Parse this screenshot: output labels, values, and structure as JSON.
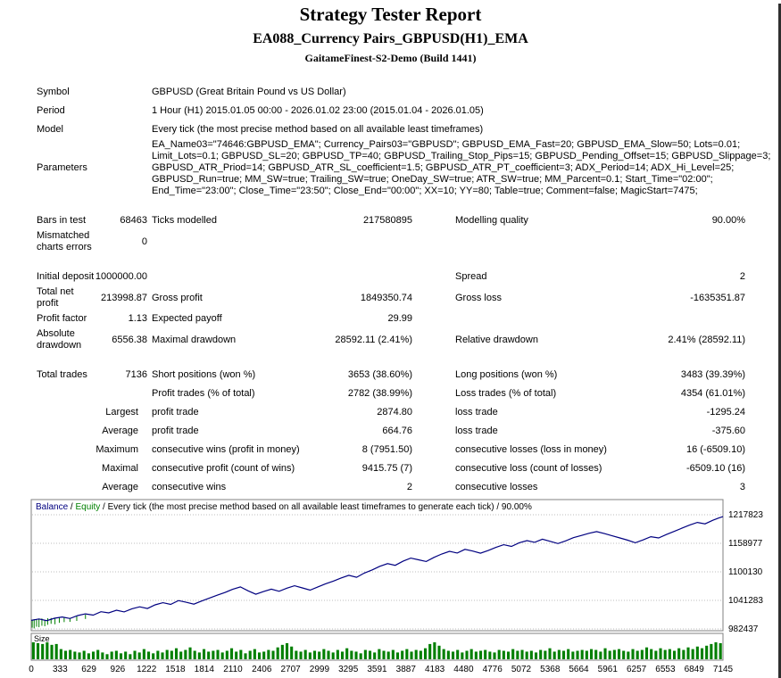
{
  "header": {
    "title": "Strategy Tester Report",
    "expert": "EA088_Currency Pairs_GBPUSD(H1)_EMA",
    "server": "GaitameFinest-S2-Demo (Build 1441)"
  },
  "table": {
    "rows": [
      {
        "type": "wide",
        "label": "Symbol",
        "value": "GBPUSD (Great Britain Pound vs US Dollar)"
      },
      {
        "type": "wide",
        "label": "Period",
        "value": "1 Hour (H1) 2015.01.05 00:00 - 2026.01.02 23:00 (2015.01.04 - 2026.01.05)"
      },
      {
        "type": "wide",
        "label": "Model",
        "value": "Every tick (the most precise method based on all available least timeframes)"
      },
      {
        "type": "wide",
        "label": "Parameters",
        "lines": [
          "EA_Name03=\"74646:GBPUSD_EMA\"; Currency_Pairs03=\"GBPUSD\"; GBPUSD_EMA_Fast=20; GBPUSD_EMA_Slow=50; Lots=0.01;",
          "Limit_Lots=0.1; GBPUSD_SL=20; GBPUSD_TP=40; GBPUSD_Trailing_Stop_Pips=15; GBPUSD_Pending_Offset=15; GBPUSD_Slippage=3;",
          "GBPUSD_ATR_Priod=14; GBPUSD_ATR_SL_coefficient=1.5; GBPUSD_ATR_PT_coefficient=3; ADX_Period=14; ADX_Hi_Level=25;",
          "GBPUSD_Run=true; MM_SW=true; Trailing_SW=true; OneDay_SW=true; ATR_SW=true; MM_Parcent=0.1; Start_Time=\"02:00\";",
          "End_Time=\"23:00\"; Close_Time=\"23:50\"; Close_End=\"00:00\"; XX=10; YY=80; Table=true; Comment=false; MagicStart=7475;"
        ]
      },
      {
        "type": "gap"
      },
      {
        "type": "six",
        "cells": [
          "Bars in test",
          "68463",
          "Ticks modelled",
          "217580895",
          "Modelling quality",
          "90.00%"
        ]
      },
      {
        "type": "six",
        "cells": [
          "Mismatched\ncharts errors",
          "0",
          "",
          "",
          "",
          ""
        ]
      },
      {
        "type": "gap"
      },
      {
        "type": "six",
        "cells": [
          "Initial deposit",
          "1000000.00",
          "",
          "",
          "Spread",
          "2"
        ]
      },
      {
        "type": "six",
        "cells": [
          "Total net\nprofit",
          "213998.87",
          "Gross profit",
          "1849350.74",
          "Gross loss",
          "-1635351.87"
        ]
      },
      {
        "type": "six",
        "cells": [
          "Profit factor",
          "1.13",
          "Expected payoff",
          "29.99",
          "",
          ""
        ]
      },
      {
        "type": "six",
        "cells": [
          "Absolute\ndrawdown",
          "6556.38",
          "Maximal drawdown",
          "28592.11 (2.41%)",
          "Relative drawdown",
          "2.41% (28592.11)"
        ]
      },
      {
        "type": "gap"
      },
      {
        "type": "six",
        "cells": [
          "Total trades",
          "7136",
          "Short positions (won %)",
          "3653 (38.60%)",
          "Long positions (won %)",
          "3483 (39.39%)"
        ]
      },
      {
        "type": "six",
        "cells": [
          "",
          "",
          "Profit trades (% of total)",
          "2782 (38.99%)",
          "Loss trades (% of total)",
          "4354 (61.01%)"
        ]
      },
      {
        "type": "rlabel",
        "cells": [
          "Largest",
          "profit trade",
          "2874.80",
          "loss trade",
          "-1295.24"
        ]
      },
      {
        "type": "rlabel",
        "cells": [
          "Average",
          "profit trade",
          "664.76",
          "loss trade",
          "-375.60"
        ]
      },
      {
        "type": "rlabel",
        "cells": [
          "Maximum",
          "consecutive wins (profit in money)",
          "8 (7951.50)",
          "consecutive losses (loss in money)",
          "16 (-6509.10)"
        ]
      },
      {
        "type": "rlabel",
        "cells": [
          "Maximal",
          "consecutive profit (count of wins)",
          "9415.75 (7)",
          "consecutive loss (count of losses)",
          "-6509.10 (16)"
        ]
      },
      {
        "type": "rlabel",
        "cells": [
          "Average",
          "consecutive wins",
          "2",
          "consecutive losses",
          "3"
        ]
      }
    ]
  },
  "chart_data": {
    "type": "line",
    "legend": {
      "balance": "Balance",
      "equity": "Equity",
      "rest": "Every tick (the most precise method based on all available least timeframes to generate each tick) / 90.00%"
    },
    "x_range": [
      0,
      7145
    ],
    "y_range": [
      982437,
      1217823
    ],
    "y_ticks": [
      1217823,
      1158977,
      1100130,
      1041283,
      982437
    ],
    "x_ticks": [
      0,
      333,
      629,
      926,
      1222,
      1518,
      1814,
      2110,
      2406,
      2707,
      2999,
      3295,
      3591,
      3887,
      4183,
      4480,
      4776,
      5072,
      5368,
      5664,
      5961,
      6257,
      6553,
      6849,
      7145
    ],
    "series": [
      {
        "name": "Balance",
        "color": "#000080",
        "points": [
          [
            0,
            1000000
          ],
          [
            80,
            1003000
          ],
          [
            160,
            999500
          ],
          [
            240,
            1004500
          ],
          [
            320,
            1007000
          ],
          [
            400,
            1004000
          ],
          [
            480,
            1010000
          ],
          [
            560,
            1013500
          ],
          [
            640,
            1011000
          ],
          [
            720,
            1018000
          ],
          [
            800,
            1015500
          ],
          [
            880,
            1021000
          ],
          [
            960,
            1017500
          ],
          [
            1040,
            1024000
          ],
          [
            1120,
            1028000
          ],
          [
            1200,
            1024500
          ],
          [
            1280,
            1032000
          ],
          [
            1360,
            1036500
          ],
          [
            1440,
            1033000
          ],
          [
            1520,
            1041000
          ],
          [
            1600,
            1037500
          ],
          [
            1680,
            1033500
          ],
          [
            1760,
            1040000
          ],
          [
            1840,
            1046000
          ],
          [
            1920,
            1052000
          ],
          [
            2000,
            1057500
          ],
          [
            2080,
            1064000
          ],
          [
            2160,
            1069000
          ],
          [
            2240,
            1061000
          ],
          [
            2320,
            1054000
          ],
          [
            2400,
            1059500
          ],
          [
            2480,
            1064500
          ],
          [
            2560,
            1060000
          ],
          [
            2640,
            1066500
          ],
          [
            2720,
            1071500
          ],
          [
            2800,
            1067000
          ],
          [
            2880,
            1062500
          ],
          [
            2960,
            1069000
          ],
          [
            3040,
            1075500
          ],
          [
            3120,
            1081000
          ],
          [
            3200,
            1087500
          ],
          [
            3280,
            1093000
          ],
          [
            3360,
            1089000
          ],
          [
            3440,
            1097500
          ],
          [
            3520,
            1104000
          ],
          [
            3600,
            1111500
          ],
          [
            3680,
            1117000
          ],
          [
            3760,
            1113500
          ],
          [
            3840,
            1122000
          ],
          [
            3920,
            1128500
          ],
          [
            4000,
            1125000
          ],
          [
            4080,
            1121500
          ],
          [
            4160,
            1130000
          ],
          [
            4240,
            1137000
          ],
          [
            4320,
            1142500
          ],
          [
            4400,
            1139000
          ],
          [
            4480,
            1146500
          ],
          [
            4560,
            1143000
          ],
          [
            4640,
            1138500
          ],
          [
            4720,
            1144000
          ],
          [
            4800,
            1150500
          ],
          [
            4880,
            1156000
          ],
          [
            4960,
            1152500
          ],
          [
            5040,
            1160000
          ],
          [
            5120,
            1164500
          ],
          [
            5200,
            1161000
          ],
          [
            5280,
            1167500
          ],
          [
            5360,
            1163000
          ],
          [
            5440,
            1158500
          ],
          [
            5520,
            1164000
          ],
          [
            5600,
            1170500
          ],
          [
            5680,
            1175000
          ],
          [
            5760,
            1179500
          ],
          [
            5840,
            1183000
          ],
          [
            5920,
            1179000
          ],
          [
            6000,
            1174500
          ],
          [
            6080,
            1170000
          ],
          [
            6160,
            1165500
          ],
          [
            6240,
            1160000
          ],
          [
            6320,
            1166000
          ],
          [
            6400,
            1172500
          ],
          [
            6480,
            1170000
          ],
          [
            6560,
            1177000
          ],
          [
            6640,
            1183500
          ],
          [
            6720,
            1190000
          ],
          [
            6800,
            1196500
          ],
          [
            6880,
            1202000
          ],
          [
            6960,
            1199000
          ],
          [
            7040,
            1206500
          ],
          [
            7100,
            1211000
          ],
          [
            7145,
            1213999
          ]
        ]
      },
      {
        "name": "Equity",
        "color": "#008000"
      }
    ],
    "equity_spikes": [
      [
        10,
        1001000,
        985000
      ],
      [
        30,
        1002500,
        983500
      ],
      [
        55,
        1001500,
        987000
      ],
      [
        80,
        1003000,
        986000
      ],
      [
        110,
        1004000,
        989000
      ],
      [
        140,
        1000500,
        988000
      ],
      [
        170,
        1004500,
        991000
      ],
      [
        205,
        1005000,
        993000
      ],
      [
        245,
        1004000,
        992000
      ],
      [
        290,
        1006000,
        995000
      ],
      [
        340,
        1007000,
        996500
      ],
      [
        400,
        1005000,
        997000
      ],
      [
        470,
        1009000,
        999000
      ],
      [
        560,
        1012000,
        1003000
      ]
    ],
    "size_series": {
      "name": "Size",
      "color": "#007f00",
      "values": [
        1,
        0.95,
        0.9,
        1,
        0.85,
        0.9,
        0.6,
        0.5,
        0.55,
        0.45,
        0.4,
        0.5,
        0.35,
        0.45,
        0.55,
        0.4,
        0.3,
        0.45,
        0.5,
        0.35,
        0.45,
        0.3,
        0.5,
        0.4,
        0.6,
        0.45,
        0.35,
        0.5,
        0.4,
        0.55,
        0.5,
        0.65,
        0.45,
        0.55,
        0.7,
        0.5,
        0.4,
        0.6,
        0.45,
        0.5,
        0.55,
        0.4,
        0.5,
        0.65,
        0.45,
        0.55,
        0.35,
        0.5,
        0.6,
        0.4,
        0.45,
        0.55,
        0.5,
        0.7,
        0.85,
        0.95,
        0.75,
        0.5,
        0.45,
        0.55,
        0.4,
        0.5,
        0.45,
        0.6,
        0.5,
        0.4,
        0.55,
        0.45,
        0.65,
        0.5,
        0.45,
        0.35,
        0.55,
        0.5,
        0.4,
        0.6,
        0.5,
        0.45,
        0.55,
        0.4,
        0.5,
        0.6,
        0.45,
        0.55,
        0.5,
        0.65,
        0.9,
        1,
        0.8,
        0.6,
        0.5,
        0.45,
        0.55,
        0.4,
        0.5,
        0.6,
        0.45,
        0.5,
        0.55,
        0.45,
        0.4,
        0.55,
        0.5,
        0.45,
        0.6,
        0.5,
        0.55,
        0.45,
        0.5,
        0.4,
        0.55,
        0.5,
        0.65,
        0.45,
        0.55,
        0.5,
        0.6,
        0.45,
        0.5,
        0.55,
        0.5,
        0.6,
        0.55,
        0.45,
        0.65,
        0.5,
        0.55,
        0.6,
        0.5,
        0.45,
        0.6,
        0.5,
        0.55,
        0.7,
        0.6,
        0.5,
        0.65,
        0.55,
        0.6,
        0.5,
        0.65,
        0.55,
        0.7,
        0.6,
        0.75,
        0.65,
        0.8,
        0.9,
        1,
        0.95
      ]
    }
  }
}
